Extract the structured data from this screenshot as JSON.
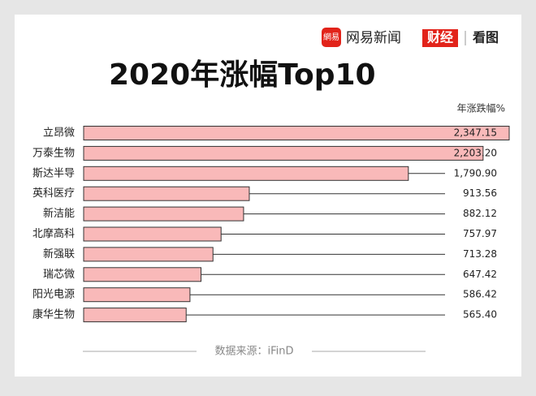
{
  "header": {
    "logo_mark": "網易",
    "brand": "网易新闻",
    "section": "财经",
    "column": "看图"
  },
  "chart_data": {
    "type": "bar",
    "orientation": "horizontal",
    "title": "2020年涨幅Top10",
    "value_label_title": "年涨跌幅%",
    "categories": [
      "立昂微",
      "万泰生物",
      "斯达半导",
      "英科医疗",
      "新洁能",
      "北摩高科",
      "新强联",
      "瑞芯微",
      "阳光电源",
      "康华生物"
    ],
    "values": [
      2347.15,
      2203.2,
      1790.9,
      913.56,
      882.12,
      757.97,
      713.28,
      647.42,
      586.42,
      565.4
    ],
    "value_labels": [
      "2,347.15",
      "2,203.20",
      "1,790.90",
      "913.56",
      "882.12",
      "757.97",
      "713.28",
      "647.42",
      "586.42",
      "565.40"
    ],
    "color": "#f9b9b9",
    "source": "数据来源：iFinD"
  }
}
